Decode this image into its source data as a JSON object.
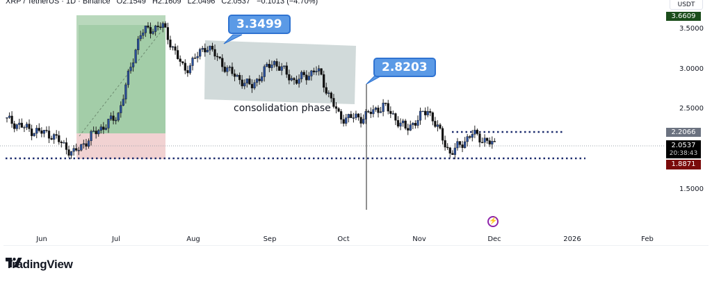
{
  "header": {
    "symbol": "XRP / TetherUS · 1D · Binance",
    "open": "O2.1549",
    "high": "H2.1609",
    "low": "L2.0496",
    "close": "C2.0537",
    "change": "−0.1013 (−4.70%)"
  },
  "price_axis": {
    "unit": "USDT",
    "ticks": [
      "3.5000",
      "3.0000",
      "2.5000",
      "1.5000"
    ],
    "tags": {
      "high_tag": "3.6609",
      "resistance_tag": "2.2066",
      "last_price": "2.0537",
      "countdown": "20:38:43",
      "support_tag": "1.8871"
    }
  },
  "time_axis": {
    "labels": [
      "Jun",
      "Jul",
      "Aug",
      "Sep",
      "Oct",
      "Nov",
      "Dec",
      "2026",
      "Feb"
    ]
  },
  "annotations": {
    "callout_1": "3.3499",
    "callout_2": "2.8203",
    "consolidation_label": "consolidation phase"
  },
  "branding": {
    "logo_text": "TradingView"
  },
  "colors": {
    "up_candle": "#2a4f9a",
    "down_candle": "#111111",
    "profit_zone": "#a5cfa9",
    "loss_zone": "#f0cfcf",
    "consolidation_box": "#c9d3d3",
    "dotted_line": "#1a2a6c",
    "callout": "#5b9ae6",
    "high_tag": "#1b4d1b",
    "resistance_tag": "#6b7280",
    "last_price_tag": "#000000",
    "support_tag": "#7a0a0a"
  },
  "chart_data": {
    "type": "candlestick",
    "title": "XRP / TetherUS · 1D · Binance",
    "xlabel": "",
    "ylabel": "USDT",
    "ylim": [
      1.2,
      3.85
    ],
    "x_ticks": [
      "Jun",
      "Jul",
      "Aug",
      "Sep",
      "Oct",
      "Nov",
      "Dec",
      "2026",
      "Feb"
    ],
    "y_ticks": [
      1.5,
      2.5,
      3.0,
      3.5
    ],
    "grid": false,
    "ohlc_current": {
      "open": 2.1549,
      "high": 2.1609,
      "low": 2.0496,
      "close": 2.0537,
      "change": -0.1013,
      "change_pct": -4.7
    },
    "key_levels": {
      "high": 3.6609,
      "resistance_dotted": 2.2066,
      "last_price": 2.0537,
      "support_dotted": 1.8871,
      "callout_high": 3.3499,
      "callout_breakdown": 2.8203
    },
    "approx_close_path": [
      {
        "date": "May-20",
        "close": 2.37
      },
      {
        "date": "Jun-01",
        "close": 2.25
      },
      {
        "date": "Jun-15",
        "close": 2.19
      },
      {
        "date": "Jun-22",
        "close": 1.95
      },
      {
        "date": "Jul-01",
        "close": 2.22
      },
      {
        "date": "Jul-10",
        "close": 2.42
      },
      {
        "date": "Jul-18",
        "close": 3.45
      },
      {
        "date": "Jul-22",
        "close": 3.55
      },
      {
        "date": "Aug-02",
        "close": 2.98
      },
      {
        "date": "Aug-10",
        "close": 3.3
      },
      {
        "date": "Aug-20",
        "close": 2.98
      },
      {
        "date": "Sep-01",
        "close": 2.78
      },
      {
        "date": "Sep-13",
        "close": 3.1
      },
      {
        "date": "Sep-25",
        "close": 2.85
      },
      {
        "date": "Oct-05",
        "close": 3.0
      },
      {
        "date": "Oct-10",
        "close": 2.4
      },
      {
        "date": "Oct-20",
        "close": 2.4
      },
      {
        "date": "Nov-01",
        "close": 2.55
      },
      {
        "date": "Nov-05",
        "close": 2.25
      },
      {
        "date": "Nov-12",
        "close": 2.5
      },
      {
        "date": "Nov-21",
        "close": 1.95
      },
      {
        "date": "Nov-25",
        "close": 2.2
      },
      {
        "date": "Dec-01",
        "close": 2.0537
      }
    ],
    "zones": [
      {
        "type": "long_position",
        "entry": 2.22,
        "target": 3.66,
        "stop": 1.89,
        "x_range": [
          "Jun-15",
          "Jul-23"
        ]
      },
      {
        "type": "consolidation_box",
        "label": "consolidation phase",
        "price_range": [
          2.72,
          3.35
        ],
        "x_range": [
          "Aug-05",
          "Oct-05"
        ]
      }
    ]
  }
}
